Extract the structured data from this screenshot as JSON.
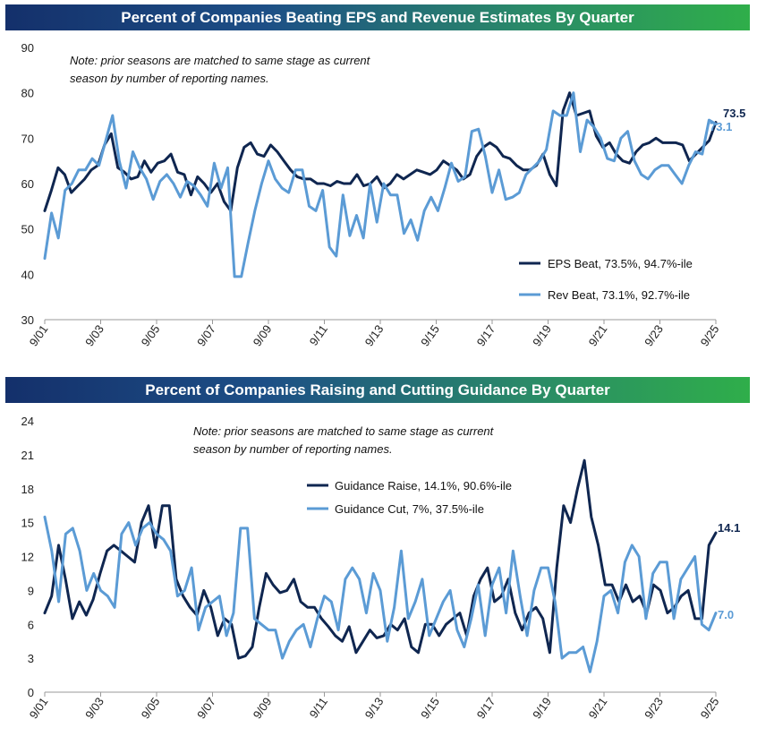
{
  "chart_data": [
    {
      "type": "line",
      "title": "Percent of Companies Beating EPS and Revenue Estimates By Quarter",
      "note_lines": [
        "Note: prior seasons are matched to same stage as current",
        "season by number of reporting names."
      ],
      "ylim": [
        30,
        90
      ],
      "yticks": [
        "30",
        "40",
        "50",
        "60",
        "70",
        "80",
        "90"
      ],
      "xticks": [
        "9/01",
        "9/03",
        "9/05",
        "9/07",
        "9/09",
        "9/11",
        "9/13",
        "9/15",
        "9/17",
        "9/19",
        "9/21",
        "9/23",
        "9/25"
      ],
      "legend": "bottom-right",
      "series": [
        {
          "name": "EPS Beat, 73.5%, 94.7%-ile",
          "color": "#0f2650",
          "end_label": "73.5",
          "values": [
            54.0,
            58.5,
            63.5,
            62.0,
            58.0,
            59.5,
            61.0,
            63.0,
            64.0,
            68.5,
            71.0,
            63.5,
            62.5,
            61.0,
            61.5,
            65.0,
            62.5,
            64.5,
            65.0,
            66.5,
            62.5,
            62.0,
            57.5,
            61.5,
            60.0,
            58.0,
            60.0,
            56.0,
            54.0,
            63.5,
            68.0,
            69.0,
            66.5,
            66.0,
            68.5,
            67.0,
            65.0,
            63.0,
            61.5,
            61.0,
            61.0,
            60.0,
            60.0,
            59.5,
            60.5,
            60.0,
            60.0,
            62.0,
            59.5,
            60.0,
            61.5,
            59.0,
            60.0,
            62.0,
            61.0,
            62.0,
            63.0,
            62.5,
            62.0,
            63.0,
            65.0,
            64.0,
            63.0,
            61.0,
            62.0,
            66.0,
            68.0,
            69.0,
            68.0,
            66.0,
            65.5,
            64.0,
            63.0,
            63.0,
            64.0,
            66.5,
            62.0,
            59.5,
            76.0,
            80.0,
            75.0,
            75.5,
            76.0,
            70.5,
            68.0,
            69.0,
            66.5,
            65.0,
            64.5,
            67.0,
            68.5,
            69.0,
            70.0,
            69.0,
            69.0,
            69.0,
            68.5,
            65.0,
            66.5,
            68.0,
            69.5,
            73.5
          ]
        },
        {
          "name": "Rev Beat, 73.1%, 92.7%-ile",
          "color": "#5b9bd5",
          "end_label": "73.1",
          "values": [
            43.5,
            53.5,
            48.0,
            58.5,
            60.0,
            63.0,
            63.0,
            65.5,
            64.0,
            69.5,
            75.0,
            65.0,
            59.0,
            67.0,
            63.5,
            61.0,
            56.5,
            60.5,
            62.0,
            60.0,
            57.0,
            60.5,
            59.5,
            57.5,
            55.0,
            64.5,
            59.0,
            63.5,
            39.5,
            39.5,
            47.0,
            54.0,
            60.0,
            65.0,
            61.0,
            59.0,
            58.0,
            63.0,
            63.0,
            55.0,
            54.0,
            58.5,
            46.0,
            44.0,
            57.5,
            48.5,
            53.0,
            48.0,
            60.0,
            51.5,
            60.0,
            57.5,
            57.5,
            49.0,
            52.0,
            47.5,
            54.0,
            57.0,
            54.0,
            59.0,
            64.5,
            60.5,
            61.5,
            71.5,
            72.0,
            66.0,
            58.0,
            63.0,
            56.5,
            57.0,
            58.0,
            62.0,
            63.5,
            65.0,
            67.5,
            76.0,
            75.0,
            75.0,
            80.0,
            67.0,
            74.0,
            72.5,
            70.0,
            65.5,
            65.0,
            70.0,
            71.5,
            65.0,
            62.0,
            61.0,
            63.0,
            64.0,
            64.0,
            62.0,
            60.0,
            64.0,
            67.0,
            66.5,
            74.0,
            73.1
          ]
        }
      ]
    },
    {
      "type": "line",
      "title": "Percent of Companies Raising and Cutting Guidance By Quarter",
      "note_lines": [
        "Note: prior seasons are matched to same stage as current",
        "season by number of reporting names."
      ],
      "ylim": [
        0,
        24
      ],
      "yticks": [
        "0",
        "3",
        "6",
        "9",
        "12",
        "15",
        "18",
        "21",
        "24"
      ],
      "xticks": [
        "9/01",
        "9/03",
        "9/05",
        "9/07",
        "9/09",
        "9/11",
        "9/13",
        "9/15",
        "9/17",
        "9/19",
        "9/21",
        "9/23",
        "9/25"
      ],
      "legend": "top-center",
      "series": [
        {
          "name": "Guidance Raise, 14.1%, 90.6%-ile",
          "color": "#0f2650",
          "end_label": "14.1",
          "values": [
            7.0,
            8.5,
            13.0,
            10.0,
            6.5,
            8.0,
            6.8,
            8.2,
            10.5,
            12.5,
            13.0,
            12.5,
            12.0,
            11.5,
            15.0,
            16.5,
            12.8,
            16.5,
            16.5,
            10.0,
            8.5,
            7.5,
            6.8,
            9.0,
            7.5,
            5.0,
            6.5,
            6.0,
            3.0,
            3.2,
            4.0,
            7.5,
            10.5,
            9.5,
            8.8,
            9.0,
            10.0,
            8.0,
            7.5,
            7.5,
            6.5,
            5.8,
            5.0,
            4.5,
            5.8,
            3.5,
            4.5,
            5.5,
            4.8,
            5.0,
            6.0,
            5.5,
            6.5,
            4.0,
            3.5,
            6.0,
            6.0,
            5.0,
            6.0,
            6.5,
            7.0,
            5.0,
            8.5,
            10.0,
            11.0,
            8.0,
            8.5,
            10.0,
            7.0,
            5.5,
            7.0,
            7.5,
            6.5,
            3.5,
            11.0,
            16.5,
            15.0,
            18.0,
            20.5,
            15.5,
            13.0,
            9.5,
            9.5,
            8.0,
            9.5,
            8.0,
            8.5,
            7.0,
            9.5,
            9.0,
            7.0,
            7.5,
            8.5,
            9.0,
            6.5,
            6.5,
            13.0,
            14.1
          ]
        },
        {
          "name": "Guidance Cut, 7%, 37.5%-ile",
          "color": "#5b9bd5",
          "end_label": "7.0",
          "values": [
            15.5,
            12.5,
            8.0,
            14.0,
            14.5,
            12.5,
            9.0,
            10.5,
            9.0,
            8.5,
            7.5,
            14.0,
            15.0,
            13.0,
            14.5,
            15.0,
            14.0,
            13.5,
            12.5,
            8.5,
            9.0,
            11.0,
            5.5,
            7.5,
            8.0,
            8.5,
            5.0,
            7.0,
            14.5,
            14.5,
            6.5,
            6.0,
            5.5,
            5.5,
            3.0,
            4.5,
            5.5,
            6.0,
            4.0,
            6.5,
            8.5,
            8.0,
            5.5,
            10.0,
            11.0,
            10.0,
            7.0,
            10.5,
            9.0,
            4.5,
            7.5,
            12.5,
            6.5,
            8.0,
            10.0,
            5.0,
            6.5,
            8.0,
            9.0,
            5.5,
            4.0,
            6.5,
            9.5,
            5.0,
            9.5,
            11.0,
            7.0,
            12.5,
            8.5,
            5.0,
            9.0,
            11.0,
            11.0,
            8.0,
            3.0,
            3.5,
            3.5,
            4.0,
            1.8,
            4.5,
            8.5,
            9.0,
            7.0,
            11.5,
            13.0,
            12.0,
            6.5,
            10.5,
            11.5,
            11.5,
            6.5,
            10.0,
            11.0,
            12.0,
            6.0,
            5.5,
            7.0
          ]
        }
      ]
    }
  ]
}
